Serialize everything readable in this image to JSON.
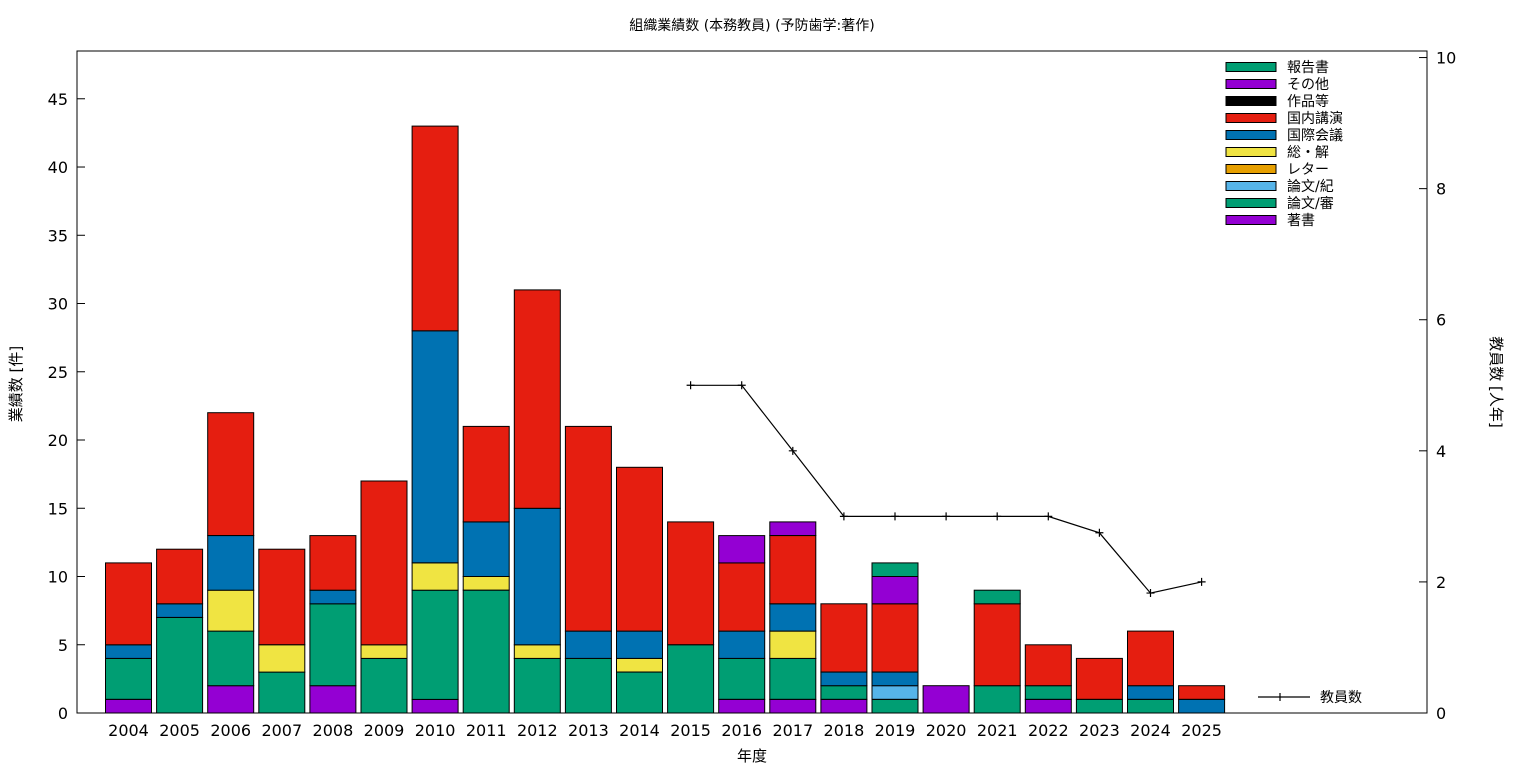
{
  "chart_data": {
    "type": "bar",
    "stacked": true,
    "title": "組織業績数 (本務教員) (予防歯学:著作)",
    "xlabel": "年度",
    "ylabel": "業績数 [件]",
    "y2label": "教員数 [人年]",
    "ylim": [
      0,
      48.5
    ],
    "y2lim": [
      0,
      10.1
    ],
    "yticks": [
      0,
      5,
      10,
      15,
      20,
      25,
      30,
      35,
      40,
      45
    ],
    "y2ticks": [
      0,
      2,
      4,
      6,
      8,
      10
    ],
    "grid": false,
    "legend_position": "top-right",
    "categories": [
      "2004",
      "2005",
      "2006",
      "2007",
      "2008",
      "2009",
      "2010",
      "2011",
      "2012",
      "2013",
      "2014",
      "2015",
      "2016",
      "2017",
      "2018",
      "2019",
      "2020",
      "2021",
      "2022",
      "2023",
      "2024",
      "2025"
    ],
    "series": [
      {
        "name": "著書",
        "color": "#9400d3",
        "values": [
          1,
          0,
          2,
          0,
          2,
          0,
          1,
          0,
          0,
          0,
          0,
          0,
          1,
          1,
          1,
          0,
          2,
          0,
          1,
          0,
          0,
          0
        ]
      },
      {
        "name": "論文/審",
        "color": "#009e73",
        "values": [
          3,
          7,
          4,
          3,
          6,
          4,
          8,
          9,
          4,
          4,
          3,
          5,
          3,
          3,
          1,
          1,
          0,
          2,
          1,
          1,
          1,
          0
        ]
      },
      {
        "name": "論文/紀",
        "color": "#56b4e9",
        "values": [
          0,
          0,
          0,
          0,
          0,
          0,
          0,
          0,
          0,
          0,
          0,
          0,
          0,
          0,
          0,
          1,
          0,
          0,
          0,
          0,
          0,
          0
        ]
      },
      {
        "name": "レター",
        "color": "#e69f00",
        "values": [
          0,
          0,
          0,
          0,
          0,
          0,
          0,
          0,
          0,
          0,
          0,
          0,
          0,
          0,
          0,
          0,
          0,
          0,
          0,
          0,
          0,
          0
        ]
      },
      {
        "name": "総・解",
        "color": "#f0e442",
        "values": [
          0,
          0,
          3,
          2,
          0,
          1,
          2,
          1,
          1,
          0,
          1,
          0,
          0,
          2,
          0,
          0,
          0,
          0,
          0,
          0,
          0,
          0
        ]
      },
      {
        "name": "国際会議",
        "color": "#0072b2",
        "values": [
          1,
          1,
          4,
          0,
          1,
          0,
          17,
          4,
          10,
          2,
          2,
          0,
          2,
          2,
          1,
          1,
          0,
          0,
          0,
          0,
          1,
          1
        ]
      },
      {
        "name": "国内講演",
        "color": "#e51e10",
        "values": [
          6,
          4,
          9,
          7,
          4,
          12,
          15,
          7,
          16,
          15,
          12,
          9,
          5,
          5,
          5,
          5,
          0,
          6,
          3,
          3,
          4,
          1
        ]
      },
      {
        "name": "作品等",
        "color": "#000000",
        "values": [
          0,
          0,
          0,
          0,
          0,
          0,
          0,
          0,
          0,
          0,
          0,
          0,
          0,
          0,
          0,
          0,
          0,
          0,
          0,
          0,
          0,
          0
        ]
      },
      {
        "name": "その他",
        "color": "#9400d3",
        "values": [
          0,
          0,
          0,
          0,
          0,
          0,
          0,
          0,
          0,
          0,
          0,
          0,
          2,
          1,
          0,
          2,
          0,
          0,
          0,
          0,
          0,
          0
        ]
      },
      {
        "name": "報告書",
        "color": "#009e73",
        "values": [
          0,
          0,
          0,
          0,
          0,
          0,
          0,
          0,
          0,
          0,
          0,
          0,
          0,
          0,
          0,
          1,
          0,
          1,
          0,
          0,
          0,
          0
        ]
      }
    ],
    "line_series": {
      "name": "教員数",
      "color": "#000000",
      "axis": "y2",
      "x": [
        "2015",
        "2016",
        "2017",
        "2018",
        "2019",
        "2020",
        "2021",
        "2022",
        "2023",
        "2024",
        "2025"
      ],
      "values": [
        5,
        5,
        4,
        3,
        3,
        3,
        3,
        3,
        2.75,
        1.83,
        2
      ]
    }
  }
}
